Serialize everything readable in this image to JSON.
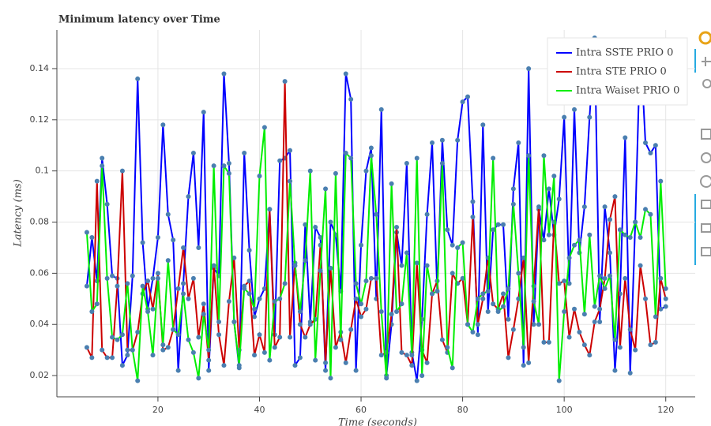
{
  "chart_data": {
    "type": "line",
    "title": "Minimum latency over Time",
    "x_label": "Time (seconds)",
    "y_label": "Latency (ms)",
    "x": [
      6,
      7,
      8,
      9,
      10,
      11,
      12,
      13,
      14,
      15,
      16,
      17,
      18,
      19,
      20,
      21,
      22,
      23,
      24,
      25,
      26,
      27,
      28,
      29,
      30,
      31,
      32,
      33,
      34,
      35,
      36,
      37,
      38,
      39,
      40,
      41,
      42,
      43,
      44,
      45,
      46,
      47,
      48,
      49,
      50,
      51,
      52,
      53,
      54,
      55,
      56,
      57,
      58,
      59,
      60,
      61,
      62,
      63,
      64,
      65,
      66,
      67,
      68,
      69,
      70,
      71,
      72,
      73,
      74,
      75,
      76,
      77,
      78,
      79,
      80,
      81,
      82,
      83,
      84,
      85,
      86,
      87,
      88,
      89,
      90,
      91,
      92,
      93,
      94,
      95,
      96,
      97,
      98,
      99,
      100,
      101,
      102,
      103,
      104,
      105,
      106,
      107,
      108,
      109,
      110,
      111,
      112,
      113,
      114,
      115,
      116,
      117,
      118,
      119,
      120
    ],
    "series": [
      {
        "name": "Intra SSTE PRIO 0",
        "color": "#0000ff",
        "values": [
          0.055,
          0.074,
          0.057,
          0.105,
          0.087,
          0.059,
          0.058,
          0.024,
          0.028,
          0.059,
          0.136,
          0.072,
          0.046,
          0.058,
          0.074,
          0.118,
          0.083,
          0.073,
          0.022,
          0.056,
          0.09,
          0.107,
          0.07,
          0.123,
          0.022,
          0.062,
          0.059,
          0.138,
          0.103,
          0.041,
          0.023,
          0.107,
          0.069,
          0.043,
          0.05,
          0.054,
          0.085,
          0.036,
          0.104,
          0.105,
          0.108,
          0.024,
          0.027,
          0.079,
          0.041,
          0.078,
          0.074,
          0.022,
          0.08,
          0.075,
          0.053,
          0.138,
          0.128,
          0.022,
          0.071,
          0.1,
          0.109,
          0.05,
          0.124,
          0.02,
          0.04,
          0.076,
          0.063,
          0.103,
          0.029,
          0.018,
          0.042,
          0.083,
          0.111,
          0.053,
          0.112,
          0.077,
          0.071,
          0.112,
          0.127,
          0.129,
          0.088,
          0.036,
          0.118,
          0.045,
          0.077,
          0.079,
          0.079,
          0.042,
          0.093,
          0.111,
          0.024,
          0.14,
          0.04,
          0.085,
          0.073,
          0.093,
          0.075,
          0.089,
          0.121,
          0.056,
          0.124,
          0.068,
          0.086,
          0.121,
          0.152,
          0.041,
          0.086,
          0.068,
          0.022,
          0.052,
          0.113,
          0.021,
          0.08,
          0.15,
          0.111,
          0.107,
          0.11,
          0.046,
          0.047
        ]
      },
      {
        "name": "Intra STE PRIO 0",
        "color": "#cc0000",
        "values": [
          0.031,
          0.027,
          0.096,
          0.03,
          0.027,
          0.027,
          0.055,
          0.1,
          0.03,
          0.03,
          0.037,
          0.052,
          0.057,
          0.046,
          0.06,
          0.03,
          0.031,
          0.038,
          0.054,
          0.07,
          0.05,
          0.058,
          0.035,
          0.048,
          0.026,
          0.063,
          0.036,
          0.024,
          0.049,
          0.066,
          0.03,
          0.055,
          0.057,
          0.028,
          0.036,
          0.029,
          0.085,
          0.031,
          0.035,
          0.135,
          0.035,
          0.064,
          0.04,
          0.035,
          0.04,
          0.042,
          0.071,
          0.025,
          0.062,
          0.031,
          0.037,
          0.025,
          0.038,
          0.05,
          0.043,
          0.046,
          0.058,
          0.058,
          0.028,
          0.029,
          0.044,
          0.078,
          0.029,
          0.028,
          0.024,
          0.064,
          0.03,
          0.025,
          0.052,
          0.057,
          0.034,
          0.029,
          0.06,
          0.056,
          0.058,
          0.04,
          0.082,
          0.04,
          0.05,
          0.066,
          0.048,
          0.046,
          0.052,
          0.027,
          0.038,
          0.05,
          0.066,
          0.025,
          0.055,
          0.086,
          0.033,
          0.033,
          0.08,
          0.056,
          0.057,
          0.035,
          0.046,
          0.037,
          0.032,
          0.028,
          0.041,
          0.046,
          0.058,
          0.081,
          0.09,
          0.031,
          0.058,
          0.038,
          0.03,
          0.063,
          0.05,
          0.032,
          0.033,
          0.058,
          0.05
        ]
      },
      {
        "name": "Intra Waiset PRIO 0",
        "color": "#00ee00",
        "values": [
          0.076,
          0.045,
          0.048,
          0.102,
          0.058,
          0.035,
          0.034,
          0.036,
          0.056,
          0.03,
          0.018,
          0.055,
          0.045,
          0.028,
          0.058,
          0.032,
          0.065,
          0.038,
          0.036,
          0.052,
          0.034,
          0.029,
          0.019,
          0.044,
          0.03,
          0.102,
          0.041,
          0.102,
          0.099,
          0.041,
          0.024,
          0.054,
          0.052,
          0.046,
          0.098,
          0.117,
          0.026,
          0.049,
          0.05,
          0.056,
          0.096,
          0.063,
          0.045,
          0.065,
          0.1,
          0.026,
          0.061,
          0.093,
          0.019,
          0.099,
          0.034,
          0.107,
          0.105,
          0.056,
          0.048,
          0.057,
          0.106,
          0.083,
          0.045,
          0.019,
          0.095,
          0.045,
          0.048,
          0.068,
          0.028,
          0.105,
          0.02,
          0.063,
          0.052,
          0.053,
          0.103,
          0.031,
          0.023,
          0.07,
          0.072,
          0.04,
          0.037,
          0.05,
          0.052,
          0.053,
          0.105,
          0.045,
          0.047,
          0.054,
          0.087,
          0.06,
          0.031,
          0.106,
          0.049,
          0.04,
          0.106,
          0.075,
          0.098,
          0.018,
          0.045,
          0.066,
          0.071,
          0.073,
          0.044,
          0.075,
          0.047,
          0.059,
          0.054,
          0.059,
          0.034,
          0.077,
          0.075,
          0.074,
          0.08,
          0.074,
          0.085,
          0.083,
          0.043,
          0.096,
          0.054
        ]
      }
    ],
    "marker_color": "#4a7fb0",
    "xlim": [
      0.1,
      125.8
    ],
    "ylim": [
      0.0117,
      0.1551
    ],
    "xticks": [
      20,
      40,
      60,
      80,
      100,
      120
    ],
    "yticks": [
      0.02,
      0.04,
      0.06,
      0.08,
      0.1,
      0.12,
      0.14
    ],
    "grid": true,
    "legend": "top-right"
  }
}
